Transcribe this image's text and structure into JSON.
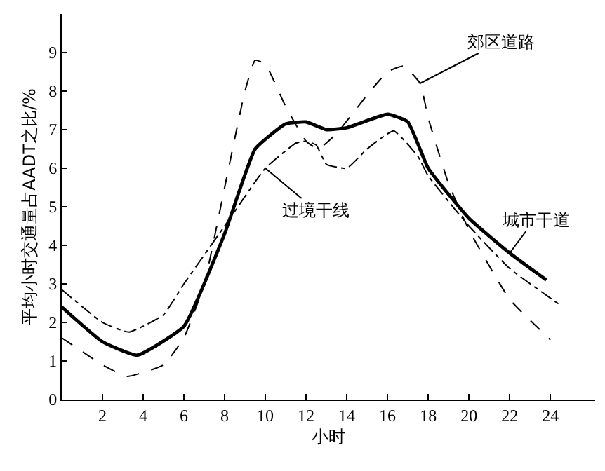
{
  "chart_data": {
    "type": "line",
    "xlabel": "小时",
    "ylabel": "平均小时交通量占AADT之比/%",
    "xlim": [
      0,
      26.2
    ],
    "ylim": [
      0,
      10
    ],
    "xticks": [
      2,
      4,
      6,
      8,
      10,
      12,
      14,
      16,
      18,
      20,
      22,
      24
    ],
    "yticks": [
      0,
      1,
      2,
      3,
      4,
      5,
      6,
      7,
      8,
      9
    ],
    "marker": "none",
    "series": [
      {
        "name": "城市干道",
        "color": "#000000",
        "line_style": "solid",
        "x": [
          0,
          2,
          3.7,
          6,
          8,
          9.5,
          11,
          12,
          13,
          14,
          16,
          17,
          18,
          20,
          22,
          23.8
        ],
        "values": [
          2.4,
          1.5,
          1.15,
          1.9,
          4.3,
          6.5,
          7.15,
          7.2,
          7.0,
          7.05,
          7.4,
          7.2,
          6.0,
          4.7,
          3.8,
          3.1
        ]
      },
      {
        "name": "郊区道路",
        "color": "#000000",
        "line_style": "dashed",
        "x": [
          0,
          2,
          3.2,
          5,
          6,
          7,
          8,
          9,
          9.5,
          10,
          11,
          12,
          12.6,
          13.5,
          15,
          16,
          16.8,
          17.6,
          18,
          19,
          20,
          22,
          24
        ],
        "values": [
          1.6,
          0.9,
          0.6,
          0.9,
          1.6,
          3.0,
          5.5,
          8.0,
          8.8,
          8.7,
          7.6,
          6.7,
          6.5,
          6.9,
          7.9,
          8.5,
          8.65,
          8.2,
          7.3,
          5.6,
          4.4,
          2.6,
          1.55
        ]
      },
      {
        "name": "过境干线",
        "color": "#000000",
        "line_style": "dashdot",
        "x": [
          0,
          2,
          3.3,
          5,
          6,
          8,
          10,
          11.5,
          12,
          12.5,
          13,
          14,
          15,
          16.3,
          17.5,
          18,
          20,
          22,
          24.4
        ],
        "values": [
          2.85,
          2.0,
          1.75,
          2.2,
          3.0,
          4.5,
          6.0,
          6.65,
          6.7,
          6.6,
          6.1,
          6.0,
          6.5,
          6.97,
          6.3,
          5.8,
          4.5,
          3.4,
          2.48
        ]
      }
    ]
  }
}
